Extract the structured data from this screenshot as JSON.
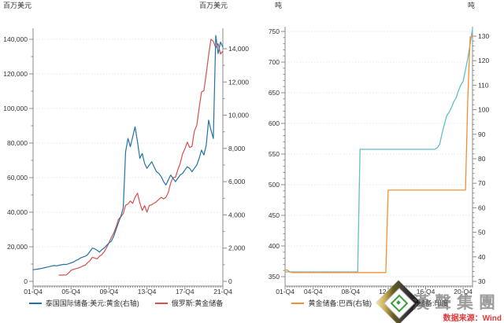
{
  "watermark": {
    "brand_text": "漢聲集團",
    "credit": "数据来源：Wind",
    "credit_color": "#e0393c",
    "gem_icon_colors": {
      "outer_dark": "#101010",
      "outer_gold": "#c9ad55",
      "face": "#fdfdfd",
      "green": "#3f9e3f"
    }
  },
  "chart_data": [
    {
      "type": "line",
      "unit_left": "百万美元",
      "unit_right": "百万美元",
      "grid": "horizontal-dotted",
      "legend_position": "bottom",
      "x_axis": {
        "range": [
          2001.75,
          2021.75
        ],
        "tick_t": [
          2001.75,
          2005.75,
          2009.75,
          2013.75,
          2017.75,
          2021.75
        ],
        "tick_labels": [
          "01-Q4",
          "05-Q4",
          "09-Q4",
          "13-Q4",
          "17-Q4",
          "21-Q4"
        ]
      },
      "y_left": {
        "min": 0,
        "max": 140000,
        "major": 20000,
        "minor": 10000,
        "tick_labels": [
          "0",
          "20,000",
          "40,000",
          "60,000",
          "80,000",
          "100,000",
          "120,000",
          "140,000"
        ]
      },
      "y_right": {
        "min": 0,
        "max": 14000,
        "major": 2000,
        "minor": 1000,
        "tick_labels": [
          "0",
          "2,000",
          "4,000",
          "6,000",
          "8,000",
          "10,000",
          "12,000",
          "14,000"
        ]
      },
      "series": [
        {
          "name": "泰国国际储备:美元:黄金(右轴)",
          "axis": "right",
          "color": "#2273a3",
          "start": 2001.75,
          "step": 0.25,
          "values": [
            700,
            720,
            740,
            760,
            790,
            830,
            860,
            890,
            930,
            950,
            930,
            970,
            1000,
            1020,
            1010,
            1060,
            1110,
            1160,
            1250,
            1310,
            1410,
            1460,
            1510,
            1610,
            1800,
            2000,
            1960,
            1870,
            1760,
            1910,
            2010,
            2160,
            2310,
            2420,
            2720,
            3120,
            3520,
            3920,
            4420,
            7800,
            8600,
            8100,
            8700,
            9300,
            8400,
            7400,
            7700,
            7100,
            6800,
            7000,
            7200,
            6900,
            6600,
            6500,
            6300,
            6000,
            5800,
            6100,
            6400,
            6200,
            6000,
            6200,
            6400,
            6500,
            6700,
            6900,
            6800,
            6600,
            6800,
            7000,
            7400,
            7900,
            7600,
            8200,
            9700,
            9100,
            8600,
            14800,
            13700,
            14400,
            14100
          ]
        },
        {
          "name": "俄罗斯:黄金储备",
          "axis": "left",
          "color": "#d6514e",
          "start": 2004.5,
          "step": 0.25,
          "values": [
            3600,
            3650,
            3700,
            3750,
            4900,
            6300,
            6900,
            7300,
            7700,
            8200,
            8900,
            9400,
            10800,
            12000,
            13900,
            13500,
            13000,
            14500,
            15500,
            17200,
            19500,
            22400,
            25300,
            27900,
            31500,
            35800,
            37400,
            39200,
            44000,
            44700,
            46500,
            45100,
            48700,
            51000,
            45300,
            41000,
            43800,
            40000,
            43900,
            44300,
            45200,
            46100,
            47400,
            48600,
            47700,
            48600,
            51400,
            56900,
            60100,
            60200,
            64600,
            68200,
            73700,
            76600,
            80500,
            77400,
            78100,
            86900,
            90200,
            100300,
            109500,
            110300,
            120000,
            130800,
            140000,
            138800,
            135000,
            137500,
            131500,
            133100
          ]
        }
      ]
    },
    {
      "type": "line",
      "unit_left": "吨",
      "unit_right": "吨",
      "grid": "horizontal-dotted",
      "legend_position": "bottom",
      "x_axis": {
        "range": [
          2001.75,
          2021.75
        ],
        "tick_t": [
          2001.75,
          2004.75,
          2008.75,
          2012.75,
          2016.75,
          2020.75
        ],
        "tick_labels": [
          "01-Q4",
          "04-Q4",
          "08-Q4",
          "12-Q4",
          "16-Q4",
          "20-Q4"
        ]
      },
      "y_left": {
        "min": 350,
        "max": 750,
        "major": 50,
        "minor": 10,
        "tick_labels": [
          "350",
          "400",
          "450",
          "500",
          "550",
          "600",
          "650",
          "700",
          "750"
        ]
      },
      "y_right": {
        "min": 30,
        "max": 130,
        "major": 10,
        "minor": 2,
        "tick_labels": [
          "30",
          "40",
          "50",
          "60",
          "70",
          "80",
          "90",
          "100",
          "110",
          "120",
          "130"
        ]
      },
      "series": [
        {
          "name": "黄金储备:巴西(右轴)",
          "axis": "right",
          "color": "#f09033",
          "start": 2001.75,
          "step": 0.25,
          "values": [
            34.6,
            34.6,
            33.8,
            33.6,
            33.6,
            33.6,
            33.6,
            33.6,
            33.6,
            33.6,
            33.6,
            33.6,
            33.6,
            33.6,
            33.6,
            33.6,
            33.6,
            33.6,
            33.6,
            33.6,
            33.6,
            33.6,
            33.6,
            33.6,
            33.6,
            33.6,
            33.6,
            33.6,
            33.6,
            33.6,
            33.6,
            33.6,
            33.6,
            33.6,
            33.6,
            33.6,
            33.6,
            33.6,
            33.6,
            33.6,
            33.6,
            33.6,
            33.6,
            33.6,
            67.2,
            67.2,
            67.2,
            67.2,
            67.2,
            67.2,
            67.2,
            67.2,
            67.2,
            67.2,
            67.2,
            67.2,
            67.2,
            67.2,
            67.2,
            67.2,
            67.2,
            67.2,
            67.2,
            67.2,
            67.2,
            67.2,
            67.2,
            67.2,
            67.2,
            67.2,
            67.2,
            67.2,
            67.2,
            67.2,
            67.2,
            67.2,
            67.2,
            67.2,
            104.3,
            129.7,
            129.7
          ]
        },
        {
          "name": "黄金储备:印度",
          "axis": "left",
          "color": "#62bec7",
          "start": 2001.75,
          "step": 0.25,
          "values": [
            357.7,
            357.7,
            357.7,
            357.7,
            357.7,
            357.7,
            357.7,
            357.7,
            357.7,
            357.7,
            357.7,
            357.7,
            357.7,
            357.7,
            357.7,
            357.7,
            357.7,
            357.7,
            357.7,
            357.7,
            357.7,
            357.7,
            357.7,
            357.7,
            357.7,
            357.7,
            357.7,
            357.7,
            357.7,
            357.7,
            357.7,
            357.7,
            557.7,
            557.7,
            557.7,
            557.7,
            557.7,
            557.7,
            557.7,
            557.7,
            557.7,
            557.7,
            557.7,
            557.7,
            557.7,
            557.7,
            557.7,
            557.7,
            557.7,
            557.7,
            557.7,
            557.7,
            557.7,
            557.7,
            557.7,
            557.7,
            557.7,
            557.7,
            557.7,
            557.7,
            557.7,
            557.7,
            557.7,
            557.7,
            557.8,
            560.3,
            566.2,
            583.4,
            598.6,
            612.6,
            618.2,
            625.4,
            635.4,
            641.8,
            653.0,
            662.7,
            668.2,
            687.8,
            705.6,
            730.0,
            754.1
          ]
        }
      ]
    }
  ]
}
